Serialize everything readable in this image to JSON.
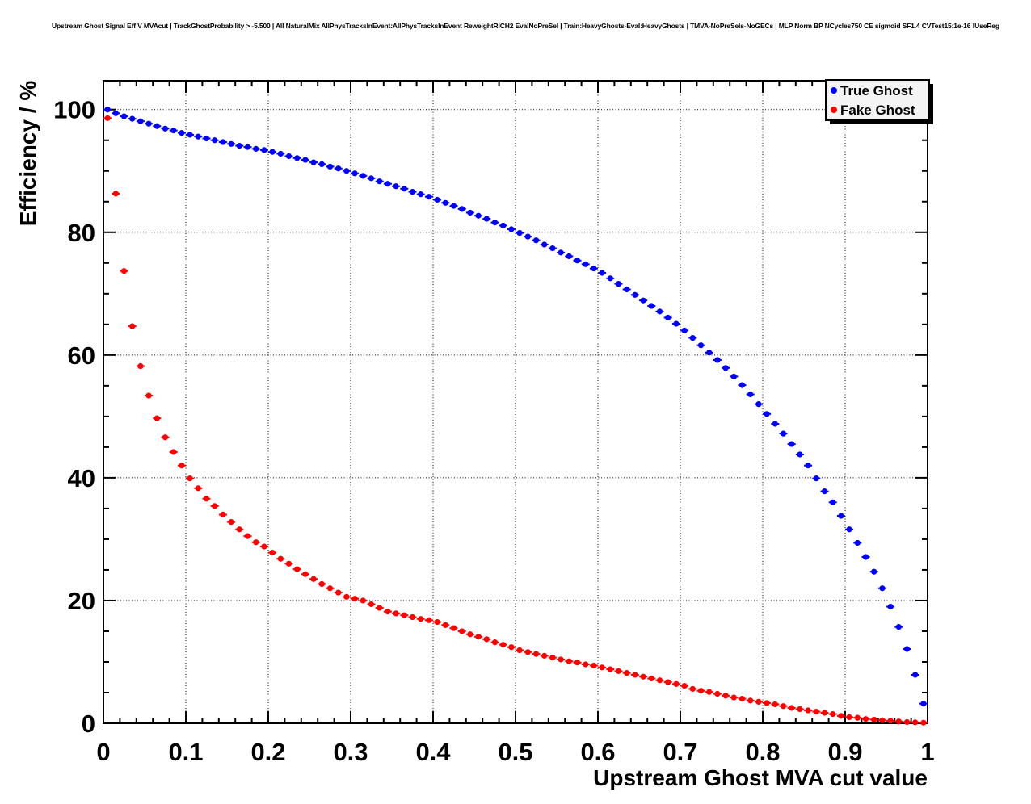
{
  "title": "Upstream Ghost Signal Eff V MVAcut | TrackGhostProbability > -5.500 | All NaturalMix AllPhysTracksInEvent:AllPhysTracksInEvent ReweightRICH2 EvalNoPreSel | Train:HeavyGhosts-Eval:HeavyGhosts | TMVA-NoPreSels-NoGECs | MLP Norm BP NCycles750 CE sigmoid SF1.4 CVTest15:1e-16 !UseReg",
  "legend": {
    "items": [
      {
        "label": "True Ghost",
        "color": "#0000ff"
      },
      {
        "label": "Fake Ghost",
        "color": "#ff0000"
      }
    ]
  },
  "chart_data": {
    "type": "scatter",
    "title": "Upstream Ghost Signal Eff V MVAcut",
    "xlabel": "Upstream Ghost MVA cut value",
    "ylabel": "Efficiency / %",
    "xlim": [
      0,
      1
    ],
    "ylim": [
      0,
      104.7
    ],
    "grid": "dotted",
    "legend_position": "top-right",
    "x_tick_values": [
      0,
      0.1,
      0.2,
      0.3,
      0.4,
      0.5,
      0.6,
      0.7,
      0.8,
      0.9,
      1
    ],
    "x_tick_labels": [
      "0",
      "0.1",
      "0.2",
      "0.3",
      "0.4",
      "0.5",
      "0.6",
      "0.7",
      "0.8",
      "0.9",
      "1"
    ],
    "x_minor_step": 0.02,
    "y_tick_values": [
      0,
      20,
      40,
      60,
      80,
      100
    ],
    "y_tick_labels": [
      "0",
      "20",
      "40",
      "60",
      "80",
      "100"
    ],
    "y_minor_step": 5,
    "x": [
      0.005,
      0.015,
      0.025,
      0.035,
      0.045,
      0.055,
      0.065,
      0.075,
      0.085,
      0.095,
      0.105,
      0.115,
      0.125,
      0.135,
      0.145,
      0.155,
      0.165,
      0.175,
      0.185,
      0.195,
      0.205,
      0.215,
      0.225,
      0.235,
      0.245,
      0.255,
      0.265,
      0.275,
      0.285,
      0.295,
      0.305,
      0.315,
      0.325,
      0.335,
      0.345,
      0.355,
      0.365,
      0.375,
      0.385,
      0.395,
      0.405,
      0.415,
      0.425,
      0.435,
      0.445,
      0.455,
      0.465,
      0.475,
      0.485,
      0.495,
      0.505,
      0.515,
      0.525,
      0.535,
      0.545,
      0.555,
      0.565,
      0.575,
      0.585,
      0.595,
      0.605,
      0.615,
      0.625,
      0.635,
      0.645,
      0.655,
      0.665,
      0.675,
      0.685,
      0.695,
      0.705,
      0.715,
      0.725,
      0.735,
      0.745,
      0.755,
      0.765,
      0.775,
      0.785,
      0.795,
      0.805,
      0.815,
      0.825,
      0.835,
      0.845,
      0.855,
      0.865,
      0.875,
      0.885,
      0.895,
      0.905,
      0.915,
      0.925,
      0.935,
      0.945,
      0.955,
      0.965,
      0.975,
      0.985,
      0.995
    ],
    "series": [
      {
        "name": "True Ghost",
        "color": "#0000ff",
        "values": [
          100.0,
          99.4,
          98.9,
          98.5,
          98.1,
          97.7,
          97.3,
          96.9,
          96.6,
          96.2,
          95.9,
          95.6,
          95.3,
          95.0,
          94.7,
          94.4,
          94.1,
          93.9,
          93.6,
          93.4,
          93.1,
          92.8,
          92.4,
          92.1,
          91.8,
          91.4,
          91.1,
          90.7,
          90.4,
          90.0,
          89.6,
          89.2,
          88.8,
          88.3,
          87.9,
          87.5,
          87.1,
          86.6,
          86.2,
          85.8,
          85.3,
          84.8,
          84.3,
          83.8,
          83.2,
          82.7,
          82.2,
          81.6,
          81.1,
          80.5,
          79.9,
          79.3,
          78.7,
          78.0,
          77.4,
          76.7,
          76.1,
          75.4,
          74.8,
          74.1,
          73.4,
          72.5,
          71.6,
          70.7,
          69.8,
          68.9,
          68.0,
          67.1,
          66.1,
          65.1,
          64.0,
          62.8,
          61.6,
          60.4,
          59.2,
          57.9,
          56.5,
          55.1,
          53.6,
          52.0,
          50.4,
          48.8,
          47.2,
          45.5,
          43.8,
          42.0,
          39.9,
          37.8,
          36.0,
          33.8,
          31.6,
          29.4,
          27.1,
          24.7,
          22.0,
          19.0,
          15.7,
          12.1,
          7.9,
          3.2
        ]
      },
      {
        "name": "Fake Ghost",
        "color": "#ff0000",
        "values": [
          98.6,
          86.3,
          73.7,
          64.7,
          58.2,
          53.4,
          49.7,
          46.6,
          44.2,
          42.0,
          39.9,
          38.3,
          36.6,
          35.4,
          34.0,
          32.8,
          31.6,
          30.5,
          29.5,
          28.8,
          27.8,
          26.8,
          26.0,
          25.1,
          24.3,
          23.5,
          22.7,
          22.0,
          21.3,
          20.6,
          20.3,
          20.0,
          19.4,
          18.8,
          18.2,
          17.9,
          17.6,
          17.3,
          17.0,
          16.8,
          16.5,
          16.0,
          15.5,
          15.0,
          14.5,
          14.1,
          13.7,
          13.2,
          12.8,
          12.4,
          11.9,
          11.6,
          11.3,
          11.0,
          10.7,
          10.4,
          10.1,
          9.9,
          9.6,
          9.4,
          9.1,
          8.8,
          8.5,
          8.2,
          7.9,
          7.6,
          7.3,
          7.0,
          6.7,
          6.4,
          6.1,
          5.6,
          5.3,
          5.1,
          4.8,
          4.5,
          4.2,
          4.0,
          3.7,
          3.5,
          3.3,
          3.1,
          2.8,
          2.5,
          2.3,
          2.1,
          1.9,
          1.7,
          1.5,
          1.2,
          1.0,
          0.9,
          0.7,
          0.6,
          0.5,
          0.4,
          0.3,
          0.2,
          0.15,
          0.1
        ]
      }
    ]
  }
}
